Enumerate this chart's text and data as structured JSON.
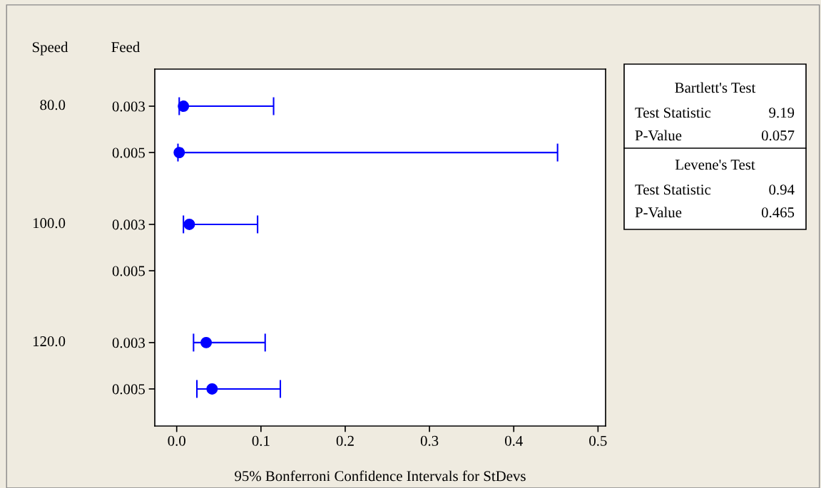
{
  "chart_data": {
    "type": "scatter",
    "orientation": "horizontal",
    "xlabel": "95% Bonferroni Confidence Intervals for StDevs",
    "categories": [
      "0.003",
      "0.005",
      "0.003",
      "0.005",
      "0.003",
      "0.005"
    ],
    "series": [
      {
        "color": "#0000ff",
        "values": [
          0.008,
          0.003,
          0.015,
          null,
          0.035,
          0.042
        ],
        "errors": [
          [
            0.003,
            0.115
          ],
          [
            0.0015,
            0.452
          ],
          [
            0.008,
            0.096
          ],
          null,
          [
            0.02,
            0.105
          ],
          [
            0.024,
            0.123
          ]
        ]
      }
    ],
    "xlim": [
      -0.026,
      0.509
    ],
    "xticks": [
      {
        "value": 0,
        "label": "0.0"
      },
      {
        "value": 0.1,
        "label": "0.1"
      },
      {
        "value": 0.2,
        "label": "0.2"
      },
      {
        "value": 0.3,
        "label": "0.3"
      },
      {
        "value": 0.4,
        "label": "0.4"
      },
      {
        "value": 0.5,
        "label": "0.5"
      }
    ],
    "marker": "circle",
    "grid": false,
    "legend": false,
    "annotations": [
      "Speed",
      "Feed",
      "80.0",
      "100.0",
      "120.0",
      "Bartlett's Test",
      "Test Statistic",
      "9.19",
      "P-Value",
      "0.057",
      "Levene's Test",
      "Test Statistic",
      "0.94",
      "P-Value",
      "0.465"
    ]
  }
}
